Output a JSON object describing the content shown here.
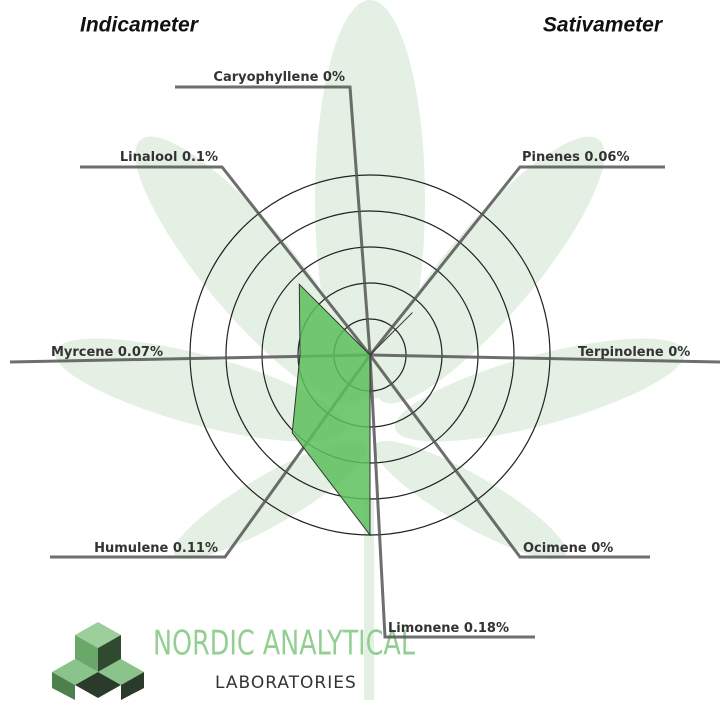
{
  "chart_data": {
    "type": "radar",
    "left_title": "Indicameter",
    "right_title": "Sativameter",
    "categories": [
      "Caryophyllene",
      "Pinenes",
      "Terpinolene",
      "Ocimene",
      "Limonene",
      "Humulene",
      "Myrcene",
      "Linalool"
    ],
    "values": [
      0,
      0.06,
      0,
      0,
      0.18,
      0.11,
      0.07,
      0.1
    ],
    "value_labels": [
      "0%",
      "0.06%",
      "0%",
      "0%",
      "0.18%",
      "0.11%",
      "0.07%",
      "0.1%"
    ],
    "color": "#5cbf5c",
    "rlim": [
      0,
      0.18
    ],
    "rticks": [
      0.036,
      0.072,
      0.108,
      0.144,
      0.18
    ],
    "grid": true
  },
  "logo": {
    "name": "NORDIC ANALYTICAL",
    "subtitle": "LABORATORIES"
  }
}
